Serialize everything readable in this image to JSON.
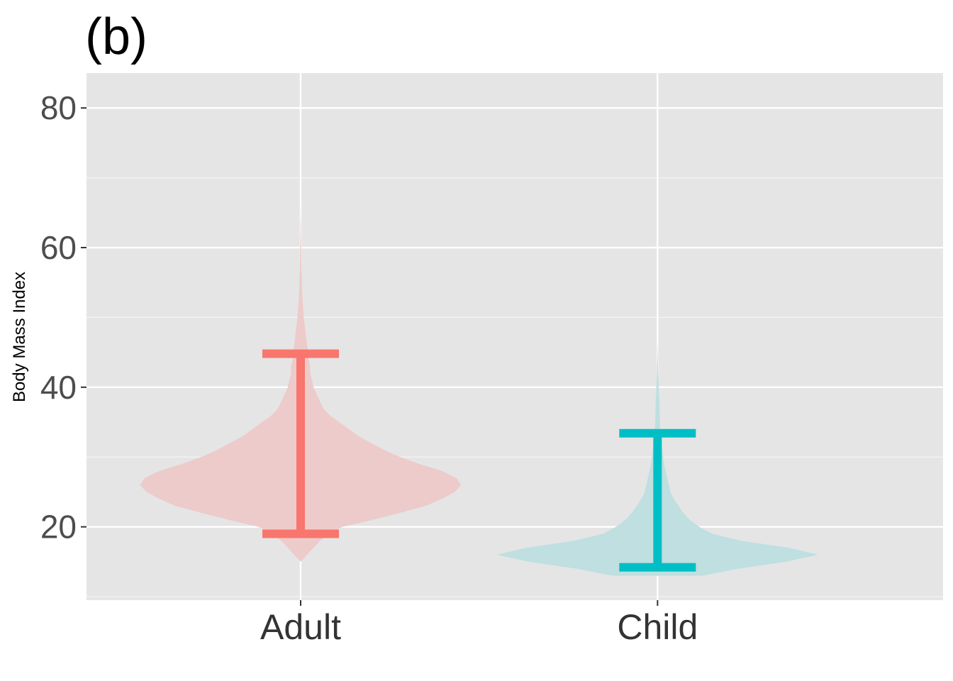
{
  "chart_data": {
    "type": "violin",
    "title": "(b)",
    "xlabel": "",
    "ylabel": "Body Mass Index",
    "categories": [
      "Adult",
      "Child"
    ],
    "ylim": [
      9.5,
      85
    ],
    "yticks": [
      20,
      40,
      60,
      80
    ],
    "grid": true,
    "legend": "none",
    "series": [
      {
        "category": "Adult",
        "color": "#F8766D",
        "fill_color": "#EDCBCB",
        "min": 15,
        "max": 66,
        "interval_low": 19,
        "interval_high": 44.8,
        "density_profile": [
          [
            15,
            0.0
          ],
          [
            16,
            0.04
          ],
          [
            17,
            0.08
          ],
          [
            18,
            0.12
          ],
          [
            19,
            0.18
          ],
          [
            20,
            0.26
          ],
          [
            21,
            0.45
          ],
          [
            22,
            0.62
          ],
          [
            23,
            0.78
          ],
          [
            24,
            0.88
          ],
          [
            25,
            0.96
          ],
          [
            26,
            1.0
          ],
          [
            27,
            0.97
          ],
          [
            28,
            0.88
          ],
          [
            29,
            0.74
          ],
          [
            30,
            0.62
          ],
          [
            31,
            0.52
          ],
          [
            32,
            0.44
          ],
          [
            33,
            0.36
          ],
          [
            34,
            0.3
          ],
          [
            35,
            0.24
          ],
          [
            36,
            0.18
          ],
          [
            37,
            0.14
          ],
          [
            38,
            0.12
          ],
          [
            39,
            0.1
          ],
          [
            40,
            0.08
          ],
          [
            41,
            0.07
          ],
          [
            42,
            0.06
          ],
          [
            43,
            0.06
          ],
          [
            44,
            0.05
          ],
          [
            45,
            0.05
          ],
          [
            46,
            0.04
          ],
          [
            48,
            0.03
          ],
          [
            50,
            0.02
          ],
          [
            53,
            0.01
          ],
          [
            57,
            0.005
          ],
          [
            62,
            0.002
          ],
          [
            66,
            0.0
          ]
        ]
      },
      {
        "category": "Child",
        "color": "#00BFC4",
        "fill_color": "#BFDFE0",
        "min": 13,
        "max": 47,
        "interval_low": 14.2,
        "interval_high": 33.4,
        "density_profile": [
          [
            13,
            0.28
          ],
          [
            14,
            0.5
          ],
          [
            15,
            0.8
          ],
          [
            16,
            1.0
          ],
          [
            17,
            0.82
          ],
          [
            18,
            0.52
          ],
          [
            19,
            0.34
          ],
          [
            20,
            0.26
          ],
          [
            21,
            0.2
          ],
          [
            22,
            0.16
          ],
          [
            23,
            0.13
          ],
          [
            24,
            0.1
          ],
          [
            25,
            0.08
          ],
          [
            26,
            0.07
          ],
          [
            27,
            0.06
          ],
          [
            28,
            0.05
          ],
          [
            29,
            0.04
          ],
          [
            30,
            0.035
          ],
          [
            31,
            0.03
          ],
          [
            32,
            0.025
          ],
          [
            33,
            0.02
          ],
          [
            34,
            0.017
          ],
          [
            35,
            0.015
          ],
          [
            36,
            0.013
          ],
          [
            37,
            0.013
          ],
          [
            38,
            0.012
          ],
          [
            39,
            0.009
          ],
          [
            40,
            0.007
          ],
          [
            42,
            0.004
          ],
          [
            44,
            0.002
          ],
          [
            47,
            0.0
          ]
        ]
      }
    ]
  }
}
